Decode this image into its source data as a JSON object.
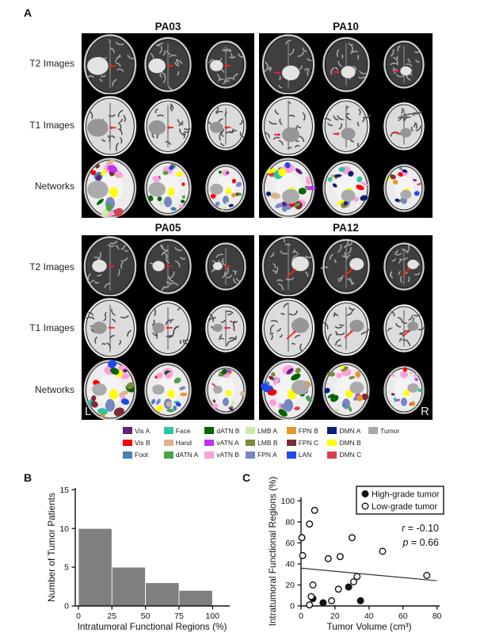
{
  "figure": {
    "panel_a": {
      "label": "A",
      "row_labels": [
        "T2 Images",
        "T1 Images",
        "Networks"
      ],
      "patients": [
        "PA03",
        "PA10",
        "PA05",
        "PA12"
      ],
      "orientation_left": "L",
      "orientation_right": "R",
      "legend": {
        "columns": [
          [
            {
              "label": "Vis A",
              "color": "#61207F"
            },
            {
              "label": "Vis B",
              "color": "#FE0000"
            },
            {
              "label": "Foot",
              "color": "#4682B4"
            }
          ],
          [
            {
              "label": "Face",
              "color": "#2EC4A0"
            },
            {
              "label": "Hand",
              "color": "#D9B48F"
            },
            {
              "label": "dATN A",
              "color": "#4BA347"
            }
          ],
          [
            {
              "label": "dATN B",
              "color": "#006400"
            },
            {
              "label": "vATN A",
              "color": "#BE33F2"
            },
            {
              "label": "vATN B",
              "color": "#FF9EDC"
            }
          ],
          [
            {
              "label": "LMB A",
              "color": "#CDEBA4"
            },
            {
              "label": "LMB B",
              "color": "#7E8A3B"
            },
            {
              "label": "FPN A",
              "color": "#7787C1"
            }
          ],
          [
            {
              "label": "FPN B",
              "color": "#E6962B"
            },
            {
              "label": "FPN C",
              "color": "#7D2A38"
            },
            {
              "label": "LAN",
              "color": "#2349E5"
            }
          ],
          [
            {
              "label": "DMN A",
              "color": "#0B1E75"
            },
            {
              "label": "DMN B",
              "color": "#FFFF00"
            },
            {
              "label": "DMN C",
              "color": "#D6414C"
            }
          ],
          [
            {
              "label": "Tumor",
              "color": "#A9A9A9"
            }
          ]
        ]
      }
    },
    "panel_b": {
      "label": "B"
    },
    "panel_c": {
      "label": "C"
    }
  },
  "chart_data": [
    {
      "type": "bar",
      "panel": "B",
      "xlabel": "Intratumoral Functional Regions (%)",
      "ylabel": "Number of Tumor Patients",
      "bin_edges": [
        0,
        25,
        50,
        75,
        100
      ],
      "values": [
        10,
        5,
        3,
        2
      ],
      "xticks": [
        0,
        25,
        50,
        75,
        100
      ],
      "yticks": [
        0,
        5,
        10,
        15
      ],
      "xlim": [
        0,
        100
      ],
      "ylim": [
        0,
        15
      ],
      "bar_color": "#7F7F7F",
      "grid": false
    },
    {
      "type": "scatter",
      "panel": "C",
      "xlabel": "Tumor Volume (cm³)",
      "ylabel": "Intratumoral Functional Regions (%)",
      "xlim": [
        0,
        80
      ],
      "ylim": [
        0,
        100
      ],
      "xticks": [
        0,
        20,
        40,
        60,
        80
      ],
      "yticks": [
        0,
        20,
        40,
        60,
        80,
        100
      ],
      "legend_position": "top-right",
      "series": [
        {
          "name": "High-grade tumor",
          "marker": "filled",
          "points": [
            [
              7,
              7
            ],
            [
              13,
              3
            ],
            [
              28,
              18
            ],
            [
              35,
              5
            ]
          ]
        },
        {
          "name": "Low-grade tumor",
          "marker": "open",
          "points": [
            [
              0.5,
              65
            ],
            [
              1,
              48
            ],
            [
              5,
              78
            ],
            [
              8,
              91
            ],
            [
              5,
              1
            ],
            [
              6,
              9
            ],
            [
              7,
              20
            ],
            [
              16,
              45
            ],
            [
              18,
              5
            ],
            [
              22,
              16
            ],
            [
              23,
              47
            ],
            [
              30,
              65
            ],
            [
              31,
              23
            ],
            [
              33,
              28
            ],
            [
              48,
              52
            ],
            [
              74,
              29
            ]
          ]
        }
      ],
      "trendline": {
        "x1": 0,
        "y1": 36,
        "x2": 80,
        "y2": 24
      },
      "stats": {
        "r_label": "r",
        "r_value": "-0.10",
        "p_label": "p",
        "p_value": "0.66"
      },
      "grid": false
    }
  ]
}
